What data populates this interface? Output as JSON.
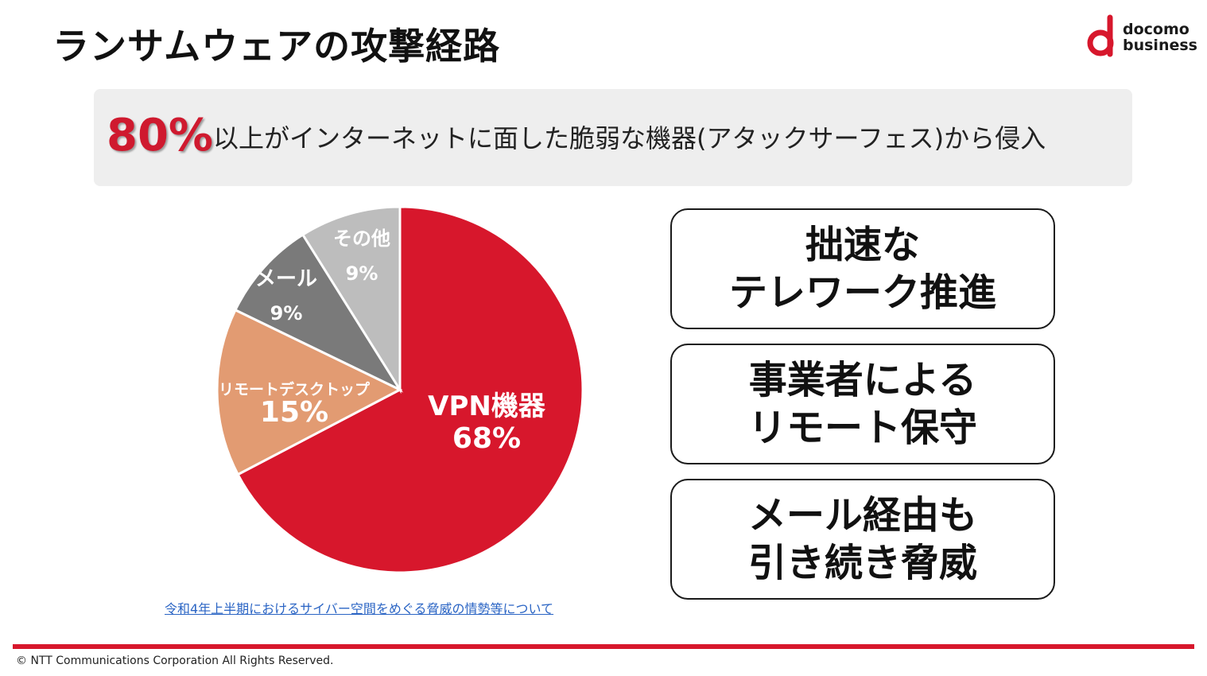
{
  "title": "ランサムウェアの攻撃経路",
  "logo": {
    "line1": "docomo",
    "line2": "business",
    "brand_color": "#d7172c"
  },
  "banner": {
    "highlight": "80%",
    "text": "以上がインターネットに面した脆弱な機器(アタックサーフェス)から侵入"
  },
  "chart_data": {
    "type": "pie",
    "title": "",
    "slices": [
      {
        "name": "VPN機器",
        "value": 68,
        "value_label": "68%",
        "color": "#d7172c",
        "label_color": "#ffffff"
      },
      {
        "name": "リモートデスクトップ",
        "value": 15,
        "value_label": "15%",
        "color": "#e29b72",
        "label_color": "#ffffff"
      },
      {
        "name": "メール",
        "value": 9,
        "value_label": "9%",
        "color": "#7a7a7a",
        "label_color": "#ffffff"
      },
      {
        "name": "その他",
        "value": 9,
        "value_label": "9%",
        "color": "#bdbdbd",
        "label_color": "#ffffff"
      }
    ]
  },
  "callouts": [
    {
      "text": "拙速な\nテレワーク推進"
    },
    {
      "text": "事業者による\nリモート保守"
    },
    {
      "text": "メール経由も\n引き続き脅威"
    }
  ],
  "source_link": "令和4年上半期におけるサイバー空間をめぐる脅威の情勢等について",
  "footer": {
    "copyright": "© NTT Communications Corporation All Rights Reserved."
  }
}
